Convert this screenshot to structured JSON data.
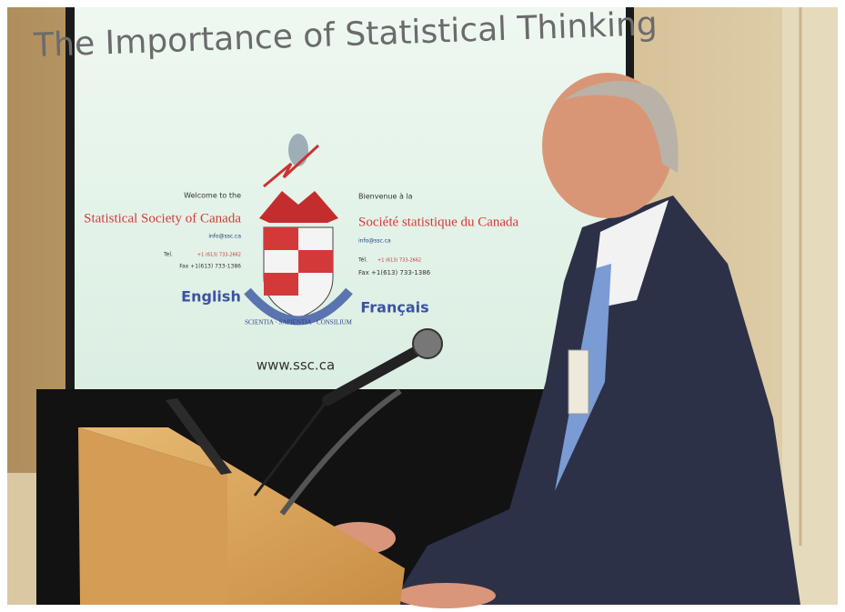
{
  "slide": {
    "title": "The Importance of Statistical Thinking",
    "english": {
      "welcome": "Welcome to the",
      "name": "Statistical Society of Canada",
      "email": "info@ssc.ca",
      "tel_label": "Tel.",
      "tel": "+1 (613) 733-2662",
      "fax": "Fax +1(613) 733-1386",
      "language": "English"
    },
    "french": {
      "welcome": "Bienvenue à la",
      "name": "Société statistique du Canada",
      "email": "info@ssc.ca",
      "tel_label": "Tél.",
      "tel": "+1 (613) 733-2662",
      "fax": "Fax +1(613) 733-1386",
      "language": "Français"
    },
    "motto": "SCIENTIA · SAPIENTIA · CONSILIUM",
    "url": "www.ssc.ca"
  }
}
